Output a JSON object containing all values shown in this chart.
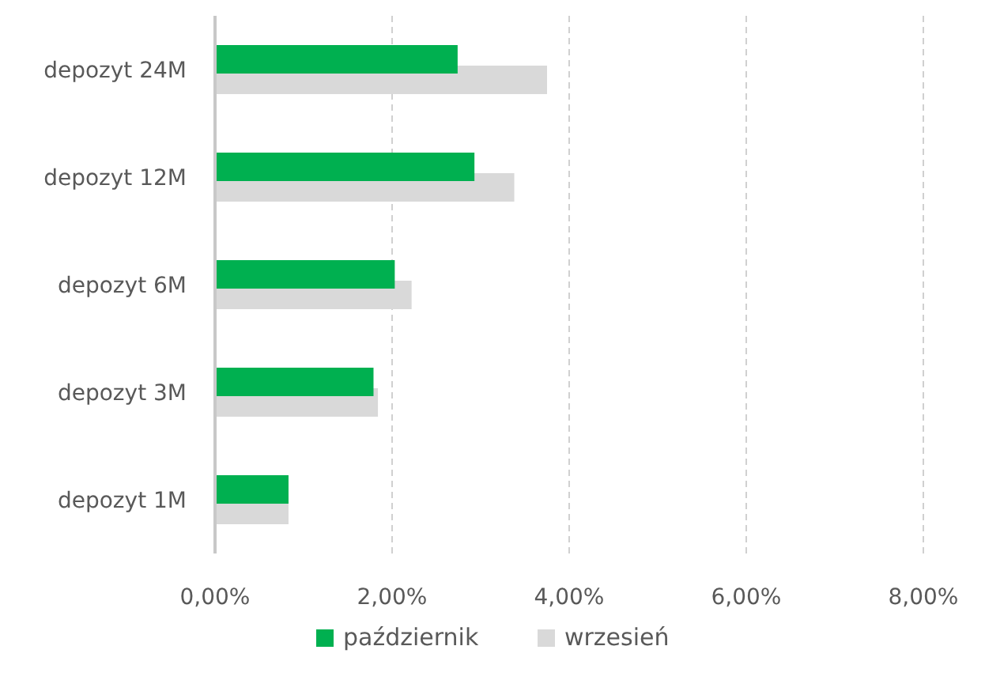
{
  "chart_data": {
    "type": "bar",
    "orientation": "horizontal",
    "categories": [
      "depozyt 24M",
      "depozyt 12M",
      "depozyt 6M",
      "depozyt 3M",
      "depozyt 1M"
    ],
    "series": [
      {
        "name": "październik",
        "color": "#00b050",
        "values": [
          2.74,
          2.93,
          2.03,
          1.79,
          0.83
        ]
      },
      {
        "name": "wrzesień",
        "color": "#d9d9d9",
        "values": [
          3.75,
          3.38,
          2.22,
          1.84,
          0.83
        ]
      }
    ],
    "xlim": [
      0,
      8
    ],
    "xticks": [
      {
        "value": 0,
        "label": "0,00%"
      },
      {
        "value": 2,
        "label": "2,00%"
      },
      {
        "value": 4,
        "label": "4,00%"
      },
      {
        "value": 6,
        "label": "6,00%"
      },
      {
        "value": 8,
        "label": "8,00%"
      }
    ],
    "grid": "x",
    "legend": "bottom"
  }
}
